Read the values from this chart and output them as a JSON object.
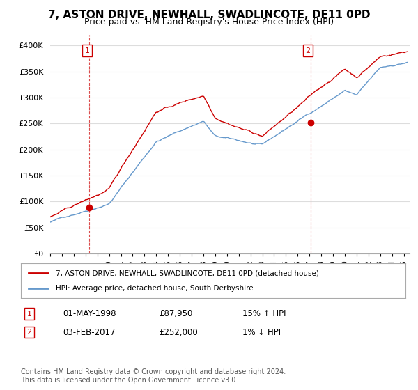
{
  "title": "7, ASTON DRIVE, NEWHALL, SWADLINCOTE, DE11 0PD",
  "subtitle": "Price paid vs. HM Land Registry's House Price Index (HPI)",
  "ylabel_ticks": [
    "£0",
    "£50K",
    "£100K",
    "£150K",
    "£200K",
    "£250K",
    "£300K",
    "£350K",
    "£400K"
  ],
  "ytick_values": [
    0,
    50000,
    100000,
    150000,
    200000,
    250000,
    300000,
    350000,
    400000
  ],
  "ylim": [
    0,
    420000
  ],
  "xlim_start": 1995.0,
  "xlim_end": 2025.5,
  "red_line_color": "#cc0000",
  "blue_line_color": "#6699cc",
  "marker1_date": 1998.33,
  "marker1_value": 87950,
  "marker2_date": 2017.08,
  "marker2_value": 252000,
  "legend_label1": "7, ASTON DRIVE, NEWHALL, SWADLINCOTE, DE11 0PD (detached house)",
  "legend_label2": "HPI: Average price, detached house, South Derbyshire",
  "table_row1": [
    "1",
    "01-MAY-1998",
    "£87,950",
    "15% ↑ HPI"
  ],
  "table_row2": [
    "2",
    "03-FEB-2017",
    "£252,000",
    "1% ↓ HPI"
  ],
  "footer": "Contains HM Land Registry data © Crown copyright and database right 2024.\nThis data is licensed under the Open Government Licence v3.0.",
  "background_color": "#ffffff",
  "grid_color": "#dddddd"
}
